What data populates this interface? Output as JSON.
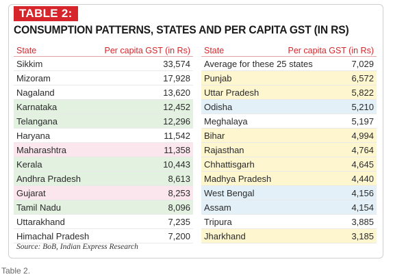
{
  "badge": "TABLE 2:",
  "title": "CONSUMPTION PATTERNS, STATES AND PER CAPITA GST (IN RS)",
  "left_table": {
    "col_state": "State",
    "col_value": "Per capita GST (in Rs)",
    "rows": [
      {
        "state": "Sikkim",
        "value": "33,574",
        "hl": ""
      },
      {
        "state": "Mizoram",
        "value": "17,928",
        "hl": ""
      },
      {
        "state": "Nagaland",
        "value": "13,620",
        "hl": ""
      },
      {
        "state": "Karnataka",
        "value": "12,452",
        "hl": "green"
      },
      {
        "state": "Telangana",
        "value": "12,296",
        "hl": "green"
      },
      {
        "state": "Haryana",
        "value": "11,542",
        "hl": ""
      },
      {
        "state": "Maharashtra",
        "value": "11,358",
        "hl": "pink"
      },
      {
        "state": "Kerala",
        "value": "10,443",
        "hl": "green"
      },
      {
        "state": "Andhra Pradesh",
        "value": "8,613",
        "hl": "green"
      },
      {
        "state": "Gujarat",
        "value": "8,253",
        "hl": "pink"
      },
      {
        "state": "Tamil Nadu",
        "value": "8,096",
        "hl": "green"
      },
      {
        "state": "Uttarakhand",
        "value": "7,235",
        "hl": ""
      },
      {
        "state": "Himachal Pradesh",
        "value": "7,200",
        "hl": ""
      }
    ]
  },
  "right_table": {
    "col_state": "State",
    "col_value": "Per capita GST (in Rs)",
    "rows": [
      {
        "state": "Average for these 25 states",
        "value": "7,029",
        "hl": ""
      },
      {
        "state": "Punjab",
        "value": "6,572",
        "hl": "yellow"
      },
      {
        "state": "Uttar Pradesh",
        "value": "5,822",
        "hl": "yellow"
      },
      {
        "state": "Odisha",
        "value": "5,210",
        "hl": "blue"
      },
      {
        "state": "Meghalaya",
        "value": "5,197",
        "hl": ""
      },
      {
        "state": "Bihar",
        "value": "4,994",
        "hl": "yellow"
      },
      {
        "state": "Rajasthan",
        "value": "4,764",
        "hl": "yellow"
      },
      {
        "state": "Chhattisgarh",
        "value": "4,645",
        "hl": "yellow"
      },
      {
        "state": "Madhya Pradesh",
        "value": "4,440",
        "hl": "yellow"
      },
      {
        "state": "West Bengal",
        "value": "4,156",
        "hl": "blue"
      },
      {
        "state": "Assam",
        "value": "4,154",
        "hl": "blue"
      },
      {
        "state": "Tripura",
        "value": "3,885",
        "hl": ""
      },
      {
        "state": "Jharkhand",
        "value": "3,185",
        "hl": "yellow"
      }
    ]
  },
  "source": "Source: BoB, Indian Express Research",
  "caption": "Table 2.",
  "colors": {
    "accent": "#d6262b",
    "green": "#e2f1e0",
    "pink": "#fbe6ee",
    "yellow": "#fdf6cf",
    "blue": "#e3f0f8"
  }
}
